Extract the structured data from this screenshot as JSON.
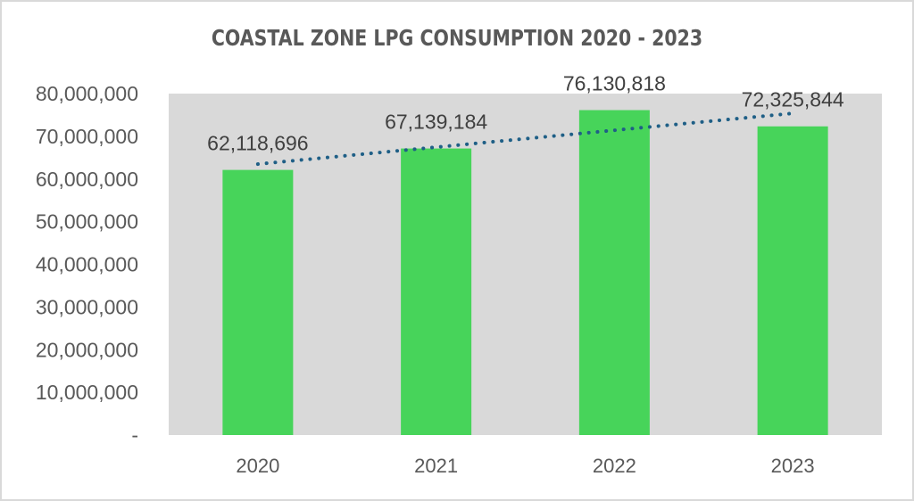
{
  "chart_data": {
    "type": "bar",
    "title": "COASTAL ZONE LPG CONSUMPTION 2020 - 2023",
    "xlabel": "",
    "ylabel": "",
    "categories": [
      "2020",
      "2021",
      "2022",
      "2023"
    ],
    "series": [
      {
        "name": "LPG Consumption",
        "values": [
          62118696,
          67139184,
          76130818,
          72325844
        ],
        "color": "#47d45a"
      }
    ],
    "data_labels": [
      "62,118,696",
      "67,139,184",
      "76,130,818",
      "72,325,844"
    ],
    "trendline": {
      "type": "linear",
      "style": "dotted",
      "color": "#1f5f86"
    },
    "ylim": [
      0,
      80000000
    ],
    "yticks": [
      0,
      10000000,
      20000000,
      30000000,
      40000000,
      50000000,
      60000000,
      70000000,
      80000000
    ],
    "ytick_labels": [
      "-",
      "10,000,000",
      "20,000,000",
      "30,000,000",
      "40,000,000",
      "50,000,000",
      "60,000,000",
      "70,000,000",
      "80,000,000"
    ],
    "plot_background": "#d9d9d9",
    "grid": false,
    "legend": "none"
  }
}
